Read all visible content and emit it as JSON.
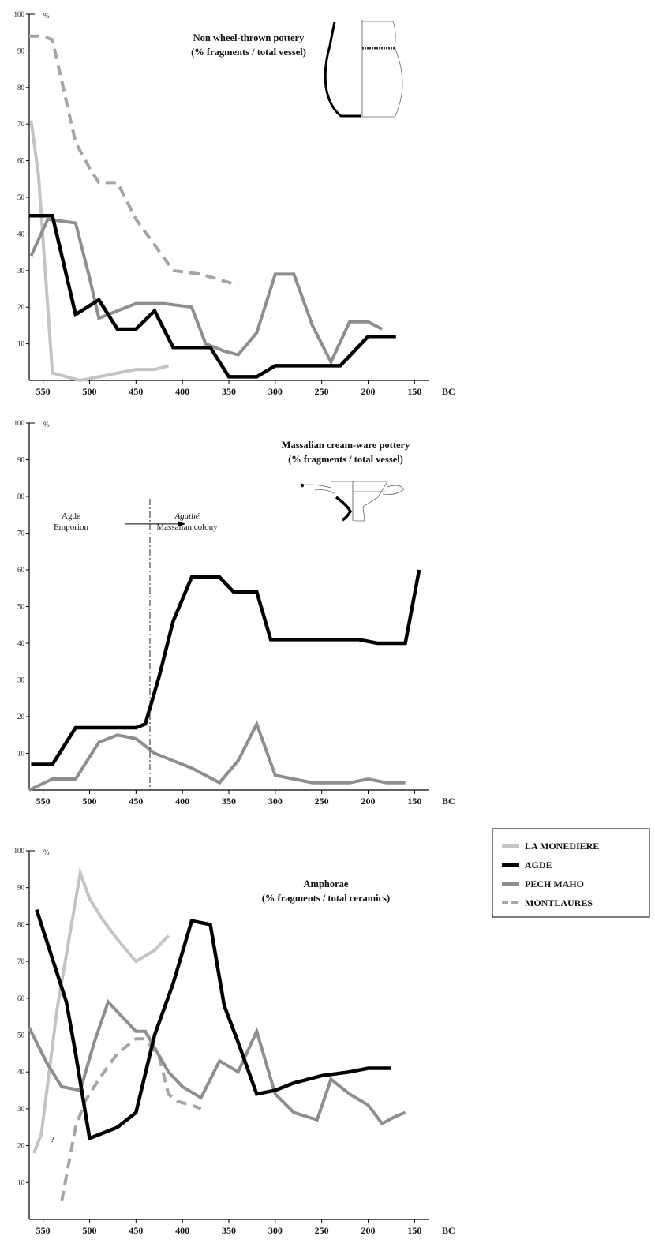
{
  "chart_data": [
    {
      "type": "line",
      "title": "Non wheel-thrown pottery",
      "subtitle": "(% fragments / total vessel)",
      "ylabel": "%",
      "xlabel": "BC",
      "x_ticks": [
        550,
        500,
        450,
        400,
        350,
        300,
        250,
        200,
        150
      ],
      "y_ticks": [
        10,
        20,
        30,
        40,
        50,
        60,
        70,
        80,
        90,
        100
      ],
      "xlim": [
        565,
        135
      ],
      "ylim": [
        0,
        100
      ],
      "series": [
        {
          "name": "MONTLAURES",
          "x": [
            565,
            550,
            540,
            515,
            500,
            490,
            470,
            450,
            410,
            380,
            340
          ],
          "y": [
            94,
            94,
            93,
            65,
            58,
            54,
            54,
            44,
            30,
            29,
            26
          ]
        },
        {
          "name": "LA MONEDIERE",
          "x": [
            563,
            555,
            540,
            510,
            490,
            470,
            450,
            430,
            415
          ],
          "y": [
            71,
            56,
            2,
            0,
            1,
            2,
            3,
            3,
            4
          ]
        },
        {
          "name": "PECH MAHO",
          "x": [
            563,
            545,
            515,
            500,
            490,
            470,
            450,
            420,
            390,
            375,
            355,
            340,
            320,
            300,
            280,
            260,
            240,
            220,
            200,
            185
          ],
          "y": [
            34,
            44,
            43,
            28,
            17,
            19,
            21,
            21,
            20,
            10,
            8,
            7,
            13,
            29,
            29,
            15,
            5,
            16,
            16,
            14
          ]
        },
        {
          "name": "AGDE",
          "x": [
            565,
            540,
            515,
            490,
            470,
            450,
            430,
            410,
            390,
            370,
            350,
            320,
            300,
            280,
            260,
            230,
            200,
            180,
            170
          ],
          "y": [
            45,
            45,
            18,
            22,
            14,
            14,
            19,
            9,
            9,
            9,
            1,
            1,
            4,
            4,
            4,
            4,
            12,
            12,
            12
          ]
        }
      ],
      "annotations": []
    },
    {
      "type": "line",
      "title": "Massalian cream-ware pottery",
      "subtitle": "(% fragments / total vessel)",
      "ylabel": "%",
      "xlabel": "BC",
      "x_ticks": [
        550,
        500,
        450,
        400,
        350,
        300,
        250,
        200,
        150
      ],
      "y_ticks": [
        10,
        20,
        30,
        40,
        50,
        60,
        70,
        80,
        90,
        100
      ],
      "xlim": [
        565,
        135
      ],
      "ylim": [
        0,
        100
      ],
      "series": [
        {
          "name": "PECH MAHO",
          "x": [
            565,
            540,
            515,
            490,
            470,
            450,
            430,
            410,
            390,
            360,
            340,
            320,
            300,
            280,
            260,
            240,
            220,
            200,
            180,
            160
          ],
          "y": [
            0,
            3,
            3,
            13,
            15,
            14,
            10,
            8,
            6,
            2,
            8,
            18,
            4,
            3,
            2,
            2,
            2,
            3,
            2,
            2
          ]
        },
        {
          "name": "AGDE",
          "x": [
            563,
            540,
            515,
            490,
            470,
            450,
            440,
            425,
            410,
            390,
            375,
            360,
            345,
            320,
            305,
            280,
            260,
            230,
            210,
            190,
            170,
            160,
            145
          ],
          "y": [
            7,
            7,
            17,
            17,
            17,
            17,
            18,
            31,
            46,
            58,
            58,
            58,
            54,
            54,
            41,
            41,
            41,
            41,
            41,
            40,
            40,
            40,
            60
          ]
        }
      ],
      "annotations": [
        {
          "text": "Agde",
          "x": 520,
          "y": 74
        },
        {
          "text": "Emporion",
          "x": 520,
          "y": 71
        },
        {
          "text": "Agathé",
          "x": 395,
          "y": 74
        },
        {
          "text": "Massalian colony",
          "x": 395,
          "y": 71
        }
      ],
      "divider_x": 435
    },
    {
      "type": "line",
      "title": "Amphorae",
      "subtitle": "(% fragments / total ceramics)",
      "ylabel": "%",
      "xlabel": "BC",
      "x_ticks": [
        550,
        500,
        450,
        400,
        350,
        300,
        250,
        200,
        150
      ],
      "y_ticks": [
        10,
        20,
        30,
        40,
        50,
        60,
        70,
        80,
        90,
        100
      ],
      "xlim": [
        565,
        135
      ],
      "ylim": [
        0,
        100
      ],
      "series": [
        {
          "name": "MONTLAURES",
          "x": [
            530,
            515,
            505,
            490,
            470,
            450,
            440,
            425,
            415,
            405,
            390,
            380
          ],
          "y": [
            5,
            25,
            32,
            38,
            45,
            49,
            49,
            44,
            34,
            32,
            31,
            30
          ]
        },
        {
          "name": "LA MONEDIERE",
          "x": [
            560,
            552,
            535,
            510,
            500,
            485,
            470,
            450,
            430,
            415
          ],
          "y": [
            18,
            23,
            57,
            94,
            87,
            81,
            76,
            70,
            73,
            77
          ]
        },
        {
          "name": "PECH MAHO",
          "x": [
            565,
            545,
            530,
            510,
            495,
            480,
            465,
            450,
            440,
            415,
            400,
            380,
            360,
            340,
            320,
            300,
            280,
            255,
            240,
            220,
            200,
            185,
            170,
            160
          ],
          "y": [
            52,
            42,
            36,
            35,
            48,
            59,
            55,
            51,
            51,
            40,
            36,
            33,
            43,
            40,
            51,
            34,
            29,
            27,
            38,
            34,
            31,
            26,
            28,
            29
          ]
        },
        {
          "name": "AGDE",
          "x": [
            557,
            525,
            515,
            500,
            490,
            470,
            450,
            430,
            410,
            390,
            370,
            355,
            340,
            320,
            300,
            280,
            250,
            220,
            200,
            175
          ],
          "y": [
            84,
            59,
            45,
            22,
            23,
            25,
            29,
            50,
            64,
            81,
            80,
            58,
            48,
            34,
            35,
            37,
            39,
            40,
            41,
            41
          ]
        }
      ],
      "annotations": [
        {
          "text": "?",
          "x": 540,
          "y": 21
        }
      ]
    }
  ],
  "legend": {
    "entries": [
      {
        "name": "LA MONEDIERE",
        "color": "#c4c4c4",
        "dash": false
      },
      {
        "name": "AGDE",
        "color": "#000000",
        "dash": false
      },
      {
        "name": "PECH MAHO",
        "color": "#8e8e8e",
        "dash": false
      },
      {
        "name": "MONTLAURES",
        "color": "#a5a5a5",
        "dash": true
      }
    ]
  },
  "colors": {
    "LA MONEDIERE": "#c4c4c4",
    "AGDE": "#000000",
    "PECH MAHO": "#8e8e8e",
    "MONTLAURES": "#a5a5a5"
  }
}
